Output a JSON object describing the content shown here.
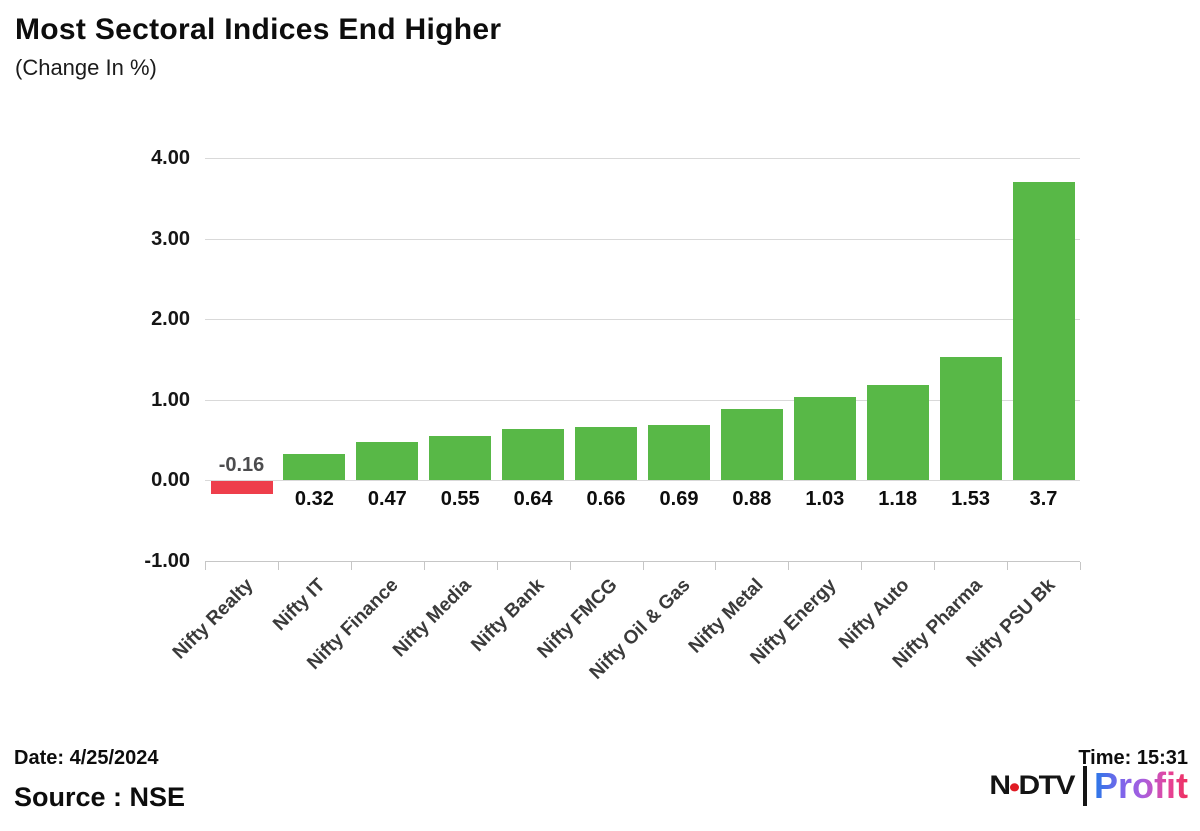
{
  "header": {
    "title": "Most Sectoral Indices End Higher",
    "subtitle": "(Change In %)"
  },
  "chart_data": {
    "type": "bar",
    "categories": [
      "Nifty Realty",
      "Nifty IT",
      "Nifty Finance",
      "Nifty Media",
      "Nifty Bank",
      "Nifty FMCG",
      "Nifty Oil & Gas",
      "Nifty Metal",
      "Nifty Energy",
      "Nifty Auto",
      "Nifty Pharma",
      "Nifty PSU Bk"
    ],
    "values": [
      -0.16,
      0.32,
      0.47,
      0.55,
      0.64,
      0.66,
      0.69,
      0.88,
      1.03,
      1.18,
      1.53,
      3.7
    ],
    "value_labels": [
      "-0.16",
      "0.32",
      "0.47",
      "0.55",
      "0.64",
      "0.66",
      "0.69",
      "0.88",
      "1.03",
      "1.18",
      "1.53",
      "3.7"
    ],
    "title": "Most Sectoral Indices End Higher",
    "xlabel": "",
    "ylabel": "",
    "ylim": [
      -1,
      4
    ],
    "yticks": [
      4,
      3,
      2,
      1,
      0,
      -1
    ],
    "ytick_labels": [
      "4.00",
      "3.00",
      "2.00",
      "1.00",
      "0.00",
      "-1.00"
    ],
    "grid": "horizontal",
    "legend": "none",
    "positive_color": "#58b847",
    "negative_color": "#ee3e4b"
  },
  "footer": {
    "date_label": "Date: 4/25/2024",
    "time_label": "Time: 15:31",
    "source_label": "Source : NSE"
  },
  "logo": {
    "brand": "NDTV",
    "product": "Profit"
  }
}
